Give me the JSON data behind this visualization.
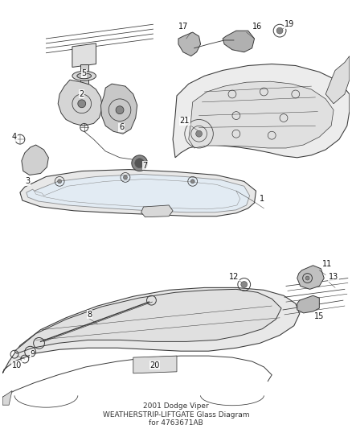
{
  "title": "2001 Dodge Viper\nWEATHERSTRIP-LIFTGATE Glass Diagram\nfor 4763671AB",
  "background_color": "#f5f5f5",
  "fig_width": 4.38,
  "fig_height": 5.33,
  "dpi": 100,
  "line_color": "#3a3a3a",
  "fill_color": "#e8e8e8",
  "line_width": 0.7,
  "label_fontsize": 7.0,
  "title_fontsize": 6.5,
  "label_color": "#111111"
}
